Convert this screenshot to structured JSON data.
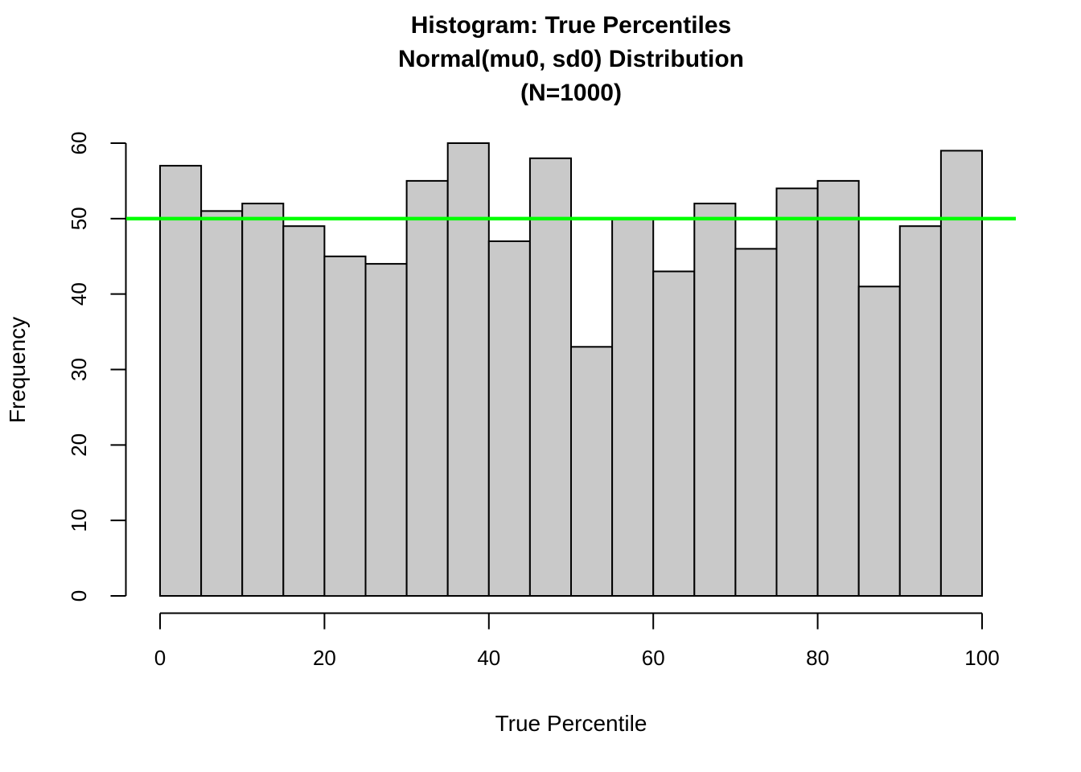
{
  "chart_data": {
    "type": "bar",
    "subtype": "histogram",
    "title_lines": [
      "Histogram: True Percentiles",
      "Normal(mu0, sd0) Distribution",
      "(N=1000)"
    ],
    "xlabel": "True Percentile",
    "ylabel": "Frequency",
    "n_total": 1000,
    "bin_width": 5,
    "bin_edges": [
      0,
      5,
      10,
      15,
      20,
      25,
      30,
      35,
      40,
      45,
      50,
      55,
      60,
      65,
      70,
      75,
      80,
      85,
      90,
      95,
      100
    ],
    "values": [
      57,
      51,
      52,
      49,
      45,
      44,
      55,
      60,
      47,
      58,
      33,
      50,
      43,
      52,
      46,
      54,
      55,
      41,
      49,
      59
    ],
    "x_ticks": [
      0,
      20,
      40,
      60,
      80,
      100
    ],
    "y_ticks": [
      0,
      10,
      20,
      30,
      40,
      50,
      60
    ],
    "xlim": [
      0,
      100
    ],
    "ylim": [
      0,
      60
    ],
    "grid": false,
    "legend": null,
    "reference_line": {
      "y": 50,
      "color": "#00FF00"
    },
    "colors": {
      "bar_fill": "#C9C9C9",
      "bar_stroke": "#000000",
      "axis": "#000000",
      "text": "#000000",
      "background": "#FFFFFF"
    }
  }
}
